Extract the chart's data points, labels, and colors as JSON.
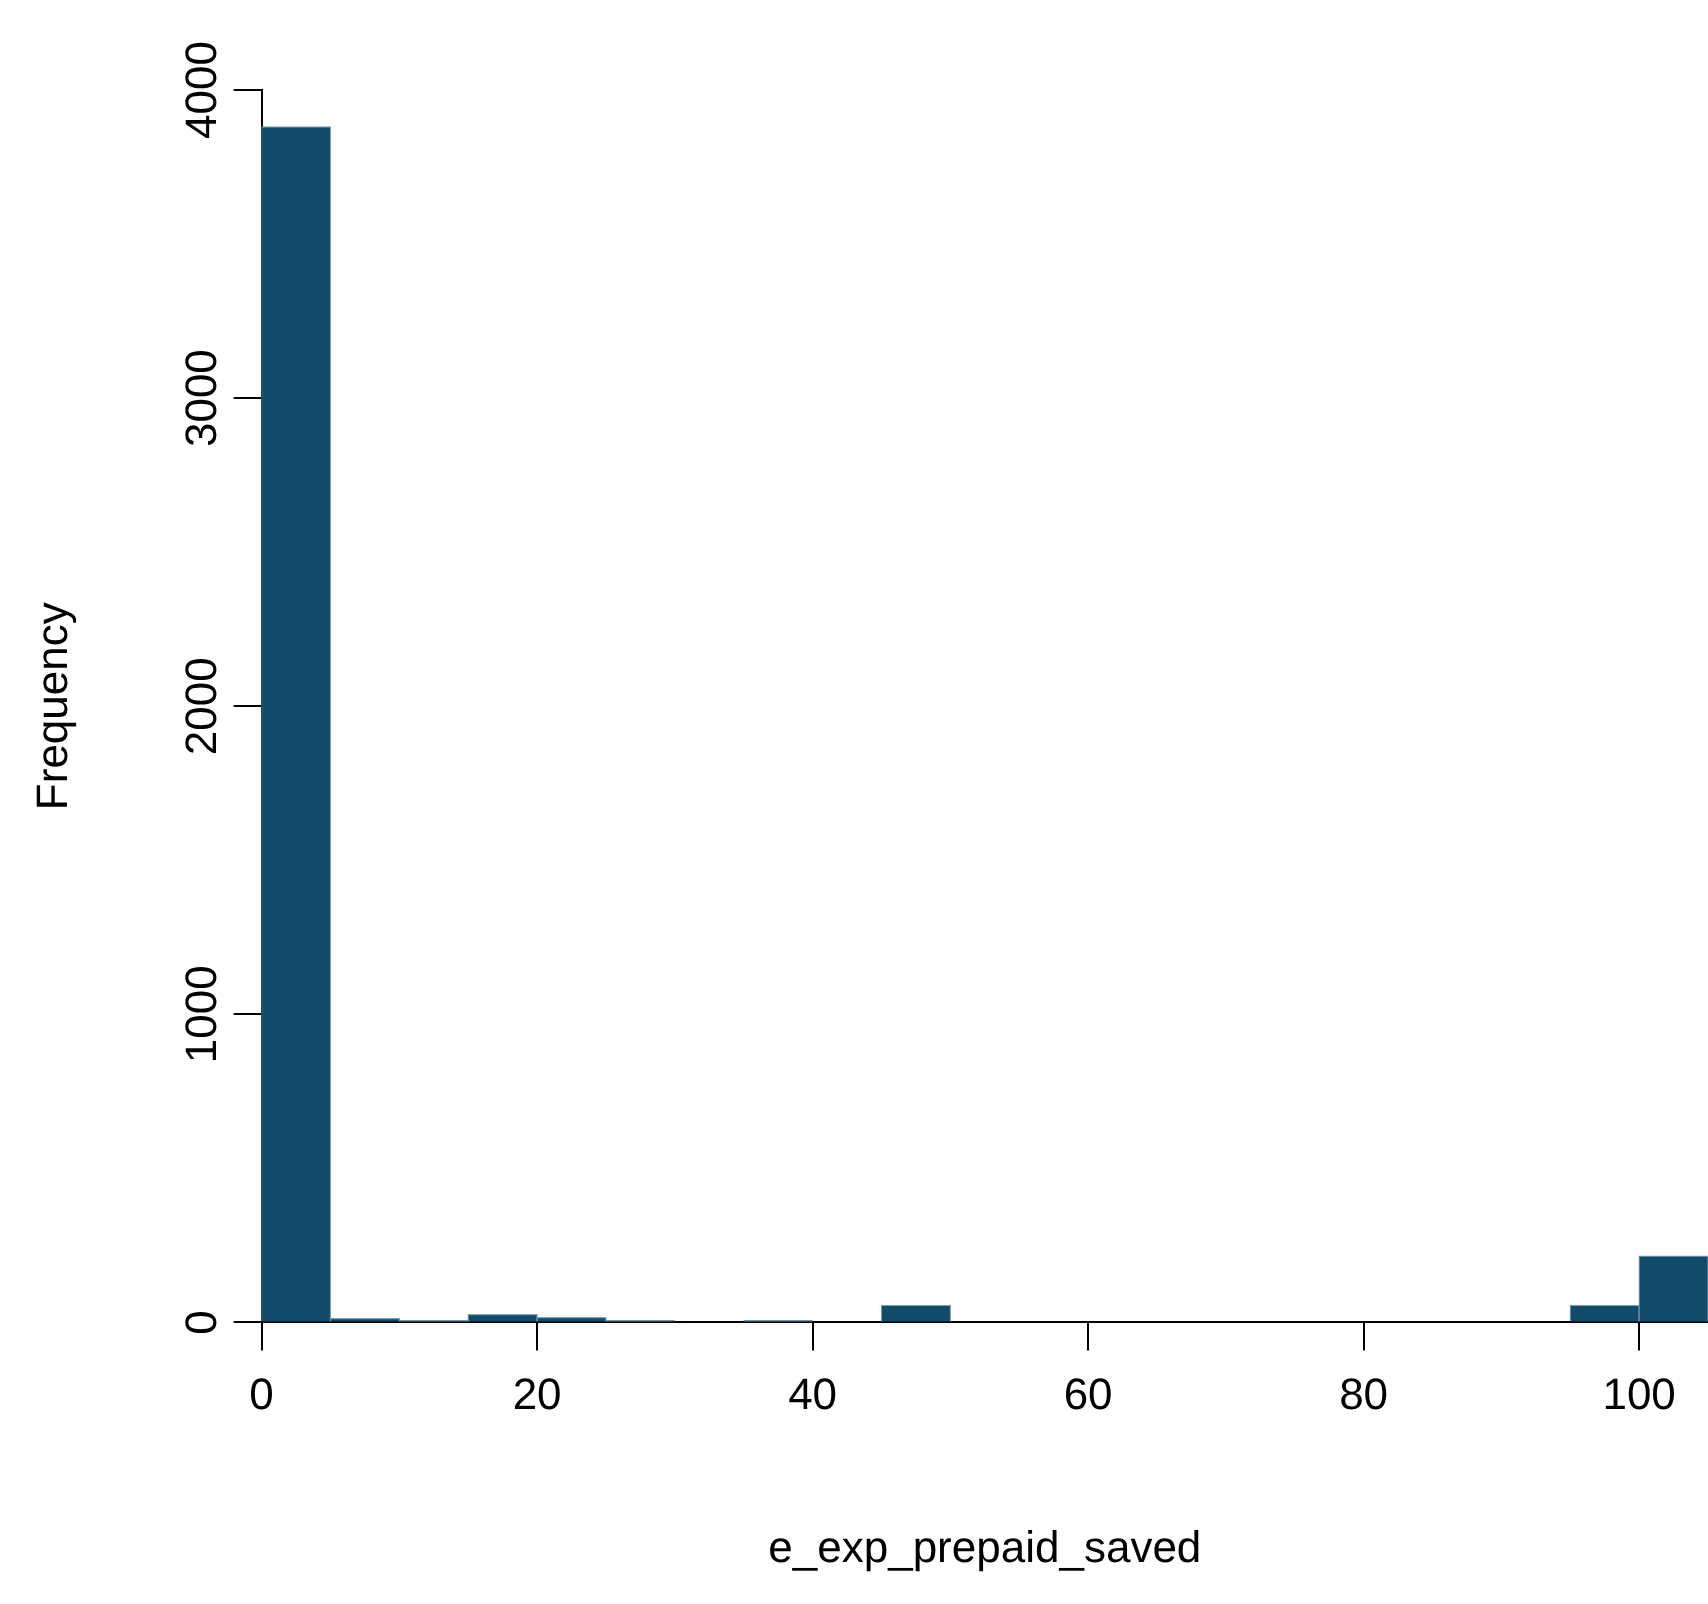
{
  "chart_data": {
    "type": "histogram",
    "xlabel": "e_exp_prepaid_saved",
    "ylabel": "Frequency",
    "bins": [
      0,
      5,
      10,
      15,
      20,
      25,
      30,
      35,
      40,
      45,
      50,
      55,
      60,
      65,
      70,
      75,
      80,
      85,
      90,
      95,
      100,
      105
    ],
    "values": [
      3880,
      12,
      5,
      25,
      15,
      5,
      0,
      5,
      0,
      55,
      0,
      0,
      0,
      0,
      0,
      0,
      0,
      0,
      0,
      55,
      215
    ],
    "color": "#124a69",
    "xlim": [
      0,
      105
    ],
    "xticks": [
      0,
      20,
      40,
      60,
      80,
      100
    ],
    "ylim": [
      0,
      4000
    ],
    "yticks": [
      0,
      1000,
      2000,
      3000,
      4000
    ],
    "grid": false,
    "legend": false
  }
}
